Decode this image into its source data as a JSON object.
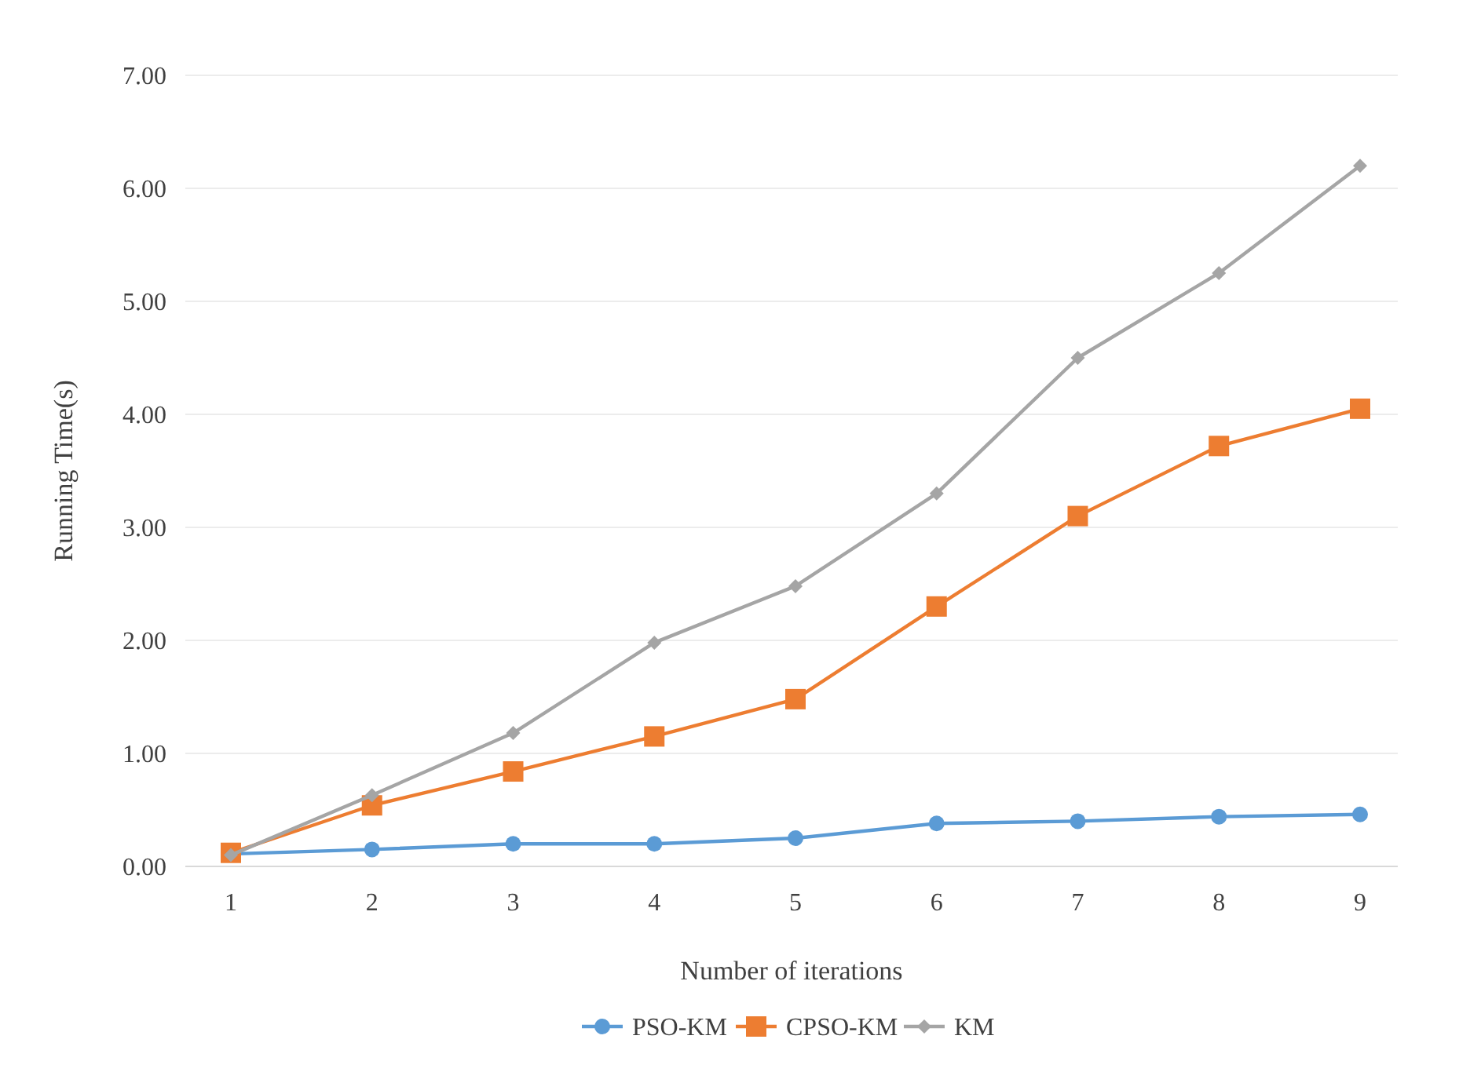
{
  "chart_data": {
    "type": "line",
    "xlabel": "Number of iterations",
    "ylabel": "Running Time(s)",
    "categories": [
      "1",
      "2",
      "3",
      "4",
      "5",
      "6",
      "7",
      "8",
      "9"
    ],
    "ylim": [
      0,
      7
    ],
    "yticks": [
      {
        "value": 0,
        "label": "0.00"
      },
      {
        "value": 1,
        "label": "1.00"
      },
      {
        "value": 2,
        "label": "2.00"
      },
      {
        "value": 3,
        "label": "3.00"
      },
      {
        "value": 4,
        "label": "4.00"
      },
      {
        "value": 5,
        "label": "5.00"
      },
      {
        "value": 6,
        "label": "6.00"
      },
      {
        "value": 7,
        "label": "7.00"
      }
    ],
    "grid": "y",
    "legend": "bottom",
    "series": [
      {
        "name": "PSO-KM",
        "color": "#5b9bd5",
        "marker": "circle",
        "values": [
          0.11,
          0.15,
          0.2,
          0.2,
          0.25,
          0.38,
          0.4,
          0.44,
          0.46
        ]
      },
      {
        "name": "CPSO-KM",
        "color": "#ed7d31",
        "marker": "square",
        "values": [
          0.12,
          0.54,
          0.84,
          1.15,
          1.48,
          2.3,
          3.1,
          3.72,
          4.05
        ]
      },
      {
        "name": "KM",
        "color": "#a5a5a5",
        "marker": "diamond",
        "values": [
          0.1,
          0.63,
          1.18,
          1.98,
          2.48,
          3.3,
          4.5,
          5.25,
          6.2
        ]
      }
    ]
  }
}
